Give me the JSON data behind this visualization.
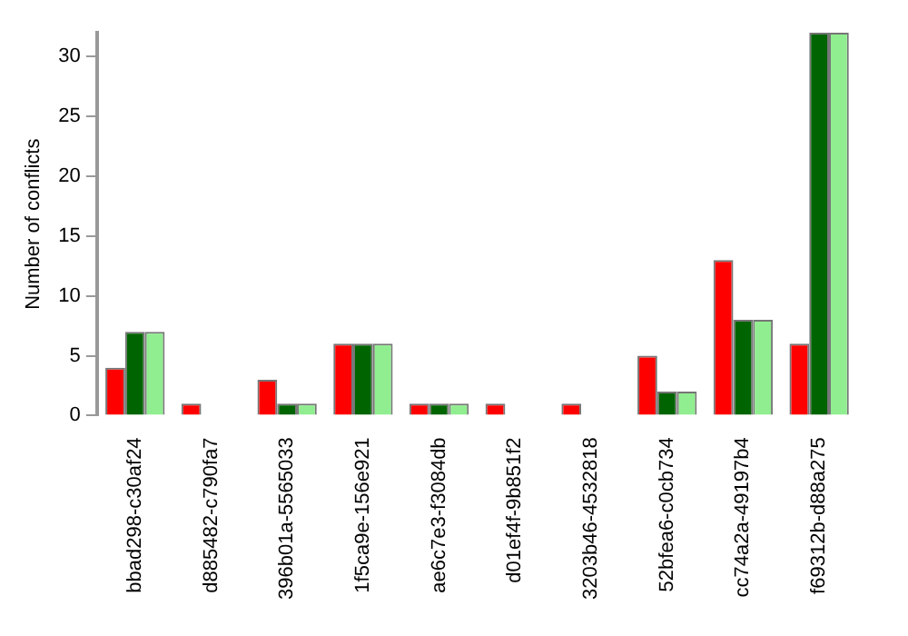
{
  "chart_data": {
    "type": "bar",
    "ylabel": "Number of conflicts",
    "categories": [
      "bbad298-c30af24",
      "d885482-c790fa7",
      "396b01a-5565033",
      "1f5ca9e-156e921",
      "ae6c7e3-f3084db",
      "d01ef4f-9b851f2",
      "3203b46-4532818",
      "52bfea6-c0cb734",
      "cc74a2a-49197b4",
      "f69312b-d88a275"
    ],
    "series": [
      {
        "color": "#ff0000",
        "values": [
          4,
          1,
          3,
          6,
          1,
          1,
          1,
          5,
          13,
          6
        ]
      },
      {
        "color": "#006400",
        "values": [
          7,
          0,
          1,
          6,
          1,
          0,
          0,
          2,
          8,
          32
        ]
      },
      {
        "color": "#90ee90",
        "values": [
          7,
          0,
          1,
          6,
          1,
          0,
          0,
          2,
          8,
          32
        ]
      }
    ],
    "ylim": [
      0,
      32
    ],
    "yticks": [
      0,
      5,
      10,
      15,
      20,
      25,
      30
    ],
    "grid": false,
    "legend": false
  }
}
